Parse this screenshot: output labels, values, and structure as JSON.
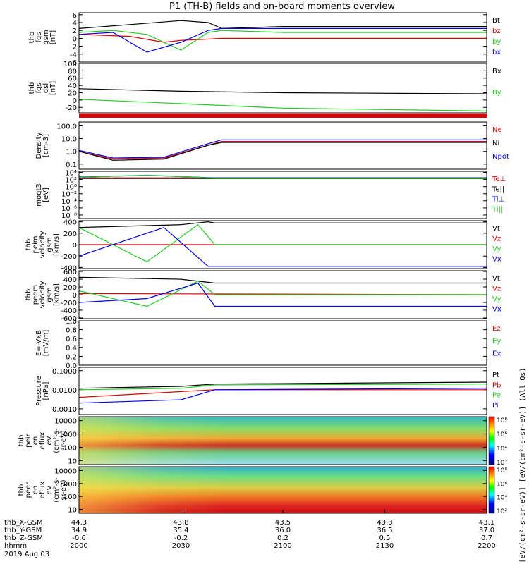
{
  "title": "P1 (TH-B) fields and on-board moments overview",
  "colors": {
    "black": "#000000",
    "red": "#dd0000",
    "green": "#22cc22",
    "blue": "#0000ee"
  },
  "chart_data": [
    {
      "type": "line",
      "ylabel": [
        "thb",
        "fgs",
        "gsm",
        "[nT]"
      ],
      "ylim": [
        -6,
        6.5
      ],
      "ticks": [
        "6",
        "4",
        "2",
        "0",
        "-2",
        "-4",
        "-6"
      ],
      "tick_values": [
        6,
        4,
        2,
        0,
        -2,
        -4,
        -6
      ],
      "series": [
        {
          "name": "Bt",
          "color": "#000000",
          "x": [
            2000,
            2015,
            2030,
            2038,
            2042,
            2100,
            2130,
            2200
          ],
          "y": [
            2.5,
            3.5,
            4.5,
            4.0,
            2.5,
            3.0,
            3.0,
            3.0
          ]
        },
        {
          "name": "bz",
          "color": "#dd0000",
          "x": [
            2000,
            2015,
            2025,
            2030,
            2038,
            2042,
            2100,
            2200
          ],
          "y": [
            1.0,
            0.5,
            -1.0,
            -0.5,
            -0.2,
            0.0,
            0.0,
            0.0
          ]
        },
        {
          "name": "by",
          "color": "#22cc22",
          "x": [
            2000,
            2010,
            2020,
            2030,
            2038,
            2042,
            2100,
            2200
          ],
          "y": [
            1.5,
            2.0,
            1.0,
            -3.0,
            1.5,
            2.0,
            1.5,
            1.5
          ]
        },
        {
          "name": "bx",
          "color": "#0000ee",
          "x": [
            2000,
            2010,
            2020,
            2030,
            2038,
            2042,
            2100,
            2200
          ],
          "y": [
            1.0,
            1.5,
            -3.5,
            -1.0,
            2.0,
            2.5,
            2.5,
            2.5
          ]
        }
      ]
    },
    {
      "type": "line",
      "ylabel": [
        "thb",
        "fgs",
        "dsl",
        "[nT]"
      ],
      "ylim": [
        -35,
        100
      ],
      "ticks": [
        "100",
        "80",
        "60",
        "40",
        "20",
        "0",
        "-20"
      ],
      "tick_values": [
        100,
        80,
        60,
        40,
        20,
        0,
        -20
      ],
      "series": [
        {
          "name": "Bx",
          "color": "#000000",
          "x": [
            2000,
            2030,
            2100,
            2200
          ],
          "y": [
            31,
            24,
            20,
            17
          ]
        },
        {
          "name": "By",
          "color": "#22cc22",
          "x": [
            2000,
            2030,
            2100,
            2200
          ],
          "y": [
            2,
            -10,
            -22,
            -30
          ]
        }
      ]
    },
    {
      "type": "line",
      "ylabel": [
        "Density",
        "[cm-3]"
      ],
      "scale": "log",
      "ticks": [
        "100.0",
        "10.0",
        "1.0",
        "0.1"
      ],
      "tick_values": [
        100,
        10,
        1,
        0.1
      ],
      "ylim": [
        0.04,
        200
      ],
      "series": [
        {
          "name": "Ne",
          "color": "#dd0000",
          "x": [
            2000,
            2010,
            2025,
            2038,
            2042,
            2100,
            2200
          ],
          "y": [
            1.0,
            0.25,
            0.3,
            3,
            6,
            6,
            6
          ]
        },
        {
          "name": "Ni",
          "color": "#000000",
          "x": [
            2000,
            2010,
            2025,
            2038,
            2042,
            2100,
            2200
          ],
          "y": [
            1.0,
            0.2,
            0.25,
            3,
            5,
            5,
            5
          ]
        },
        {
          "name": "Npot",
          "color": "#0000ee",
          "x": [
            2000,
            2010,
            2025,
            2038,
            2042,
            2100,
            2200
          ],
          "y": [
            1.2,
            0.3,
            0.35,
            4,
            8,
            8,
            8
          ]
        }
      ]
    },
    {
      "type": "line",
      "ylabel": [
        "moqt3",
        "[eV]"
      ],
      "scale": "log",
      "ticks": [
        "10⁴",
        "10²",
        "10⁰",
        "10⁻²",
        "10⁻⁴",
        "10⁻⁶",
        "10⁻⁸"
      ],
      "tick_values": [
        10000,
        100,
        1,
        0.01,
        0.0001,
        1e-06,
        1e-08
      ],
      "ylim": [
        1e-09,
        20000
      ],
      "series": [
        {
          "name": "Te⊥",
          "color": "#dd0000",
          "x": [
            2000,
            2200
          ],
          "y": [
            300,
            300
          ]
        },
        {
          "name": "Te||",
          "color": "#000000",
          "x": [
            2000,
            2200
          ],
          "y": [
            200,
            200
          ]
        },
        {
          "name": "Ti⊥",
          "color": "#0000ee",
          "x": [
            2000,
            2020,
            2040,
            2200
          ],
          "y": [
            500,
            1500,
            300,
            300
          ]
        },
        {
          "name": "Ti||",
          "color": "#22cc22",
          "x": [
            2000,
            2020,
            2040,
            2200
          ],
          "y": [
            400,
            1800,
            250,
            250
          ]
        }
      ]
    },
    {
      "type": "line",
      "ylabel": [
        "thb",
        "peim",
        "velocity",
        "gsm",
        "[km/s]"
      ],
      "ylim": [
        -420,
        420
      ],
      "ticks": [
        "400",
        "200",
        "0",
        "-200",
        "-400"
      ],
      "tick_values": [
        400,
        200,
        0,
        -200,
        -400
      ],
      "series": [
        {
          "name": "Vt",
          "color": "#000000",
          "x": [
            2000,
            2030,
            2038,
            2040,
            2200
          ],
          "y": [
            300,
            350,
            400,
            380,
            380
          ]
        },
        {
          "name": "Vz",
          "color": "#dd0000",
          "x": [
            2000,
            2200
          ],
          "y": [
            0,
            0
          ]
        },
        {
          "name": "Vy",
          "color": "#22cc22",
          "x": [
            2000,
            2020,
            2035,
            2040,
            2200
          ],
          "y": [
            300,
            -300,
            350,
            0,
            0
          ]
        },
        {
          "name": "Vx",
          "color": "#0000ee",
          "x": [
            2000,
            2025,
            2038,
            2040,
            2200
          ],
          "y": [
            -200,
            300,
            -380,
            -380,
            -380
          ]
        }
      ]
    },
    {
      "type": "line",
      "ylabel": [
        "thb",
        "peem",
        "velocity",
        "gsm",
        "[km/s]"
      ],
      "ylim": [
        -620,
        620
      ],
      "ticks": [
        "600",
        "400",
        "200",
        "0",
        "-200",
        "-400",
        "-600"
      ],
      "tick_values": [
        600,
        400,
        200,
        0,
        -200,
        -400,
        -600
      ],
      "series": [
        {
          "name": "Vt",
          "color": "#000000",
          "x": [
            2000,
            2030,
            2040,
            2200
          ],
          "y": [
            450,
            400,
            300,
            300
          ]
        },
        {
          "name": "Vz",
          "color": "#dd0000",
          "x": [
            2000,
            2200
          ],
          "y": [
            30,
            0
          ]
        },
        {
          "name": "Vy",
          "color": "#22cc22",
          "x": [
            2000,
            2020,
            2035,
            2040,
            2200
          ],
          "y": [
            100,
            -300,
            350,
            0,
            0
          ]
        },
        {
          "name": "Vx",
          "color": "#0000ee",
          "x": [
            2000,
            2020,
            2035,
            2040,
            2200
          ],
          "y": [
            -200,
            -100,
            300,
            -300,
            -300
          ]
        }
      ]
    },
    {
      "type": "line",
      "ylabel": [
        "E=-VxB",
        "[mV/m]"
      ],
      "ylim": [
        0,
        1.0
      ],
      "ticks": [
        "1.0",
        "0.8",
        "0.6",
        "0.4",
        "0.2",
        "0.0"
      ],
      "tick_values": [
        1.0,
        0.8,
        0.6,
        0.4,
        0.2,
        0.0
      ],
      "series": [
        {
          "name": "Ez",
          "color": "#dd0000",
          "x": [],
          "y": []
        },
        {
          "name": "Ey",
          "color": "#22cc22",
          "x": [],
          "y": []
        },
        {
          "name": "Ex",
          "color": "#0000ee",
          "x": [],
          "y": []
        }
      ]
    },
    {
      "type": "line",
      "ylabel": [
        "Pressure",
        "[nPa]"
      ],
      "scale": "log",
      "ticks": [
        "0.1000",
        "0.0100",
        "0.0010"
      ],
      "tick_values": [
        0.1,
        0.01,
        0.001
      ],
      "ylim": [
        0.0005,
        0.15
      ],
      "series": [
        {
          "name": "Pt",
          "color": "#000000",
          "x": [
            2000,
            2030,
            2040,
            2200
          ],
          "y": [
            0.012,
            0.015,
            0.02,
            0.025
          ]
        },
        {
          "name": "Pb",
          "color": "#dd0000",
          "x": [
            2000,
            2030,
            2040,
            2200
          ],
          "y": [
            0.004,
            0.008,
            0.01,
            0.01
          ]
        },
        {
          "name": "Pe",
          "color": "#22cc22",
          "x": [
            2000,
            2030,
            2040,
            2200
          ],
          "y": [
            0.01,
            0.012,
            0.018,
            0.02
          ]
        },
        {
          "name": "Pi",
          "color": "#0000ee",
          "x": [
            2000,
            2030,
            2040,
            2200
          ],
          "y": [
            0.002,
            0.003,
            0.01,
            0.012
          ]
        }
      ]
    },
    {
      "type": "heatmap",
      "ylabel": [
        "thb",
        "peir",
        "en",
        "eflux",
        "eV",
        "(cm²-s-",
        "sr-eV)"
      ],
      "scale": "log",
      "ticks": [
        "10000",
        "1000",
        "100",
        "10"
      ],
      "tick_values": [
        10000,
        1000,
        100,
        10
      ]
    },
    {
      "type": "heatmap",
      "ylabel": [
        "thb",
        "peer",
        "en",
        "eflux",
        "eV",
        "(cm²-s-",
        "sr-eV)"
      ],
      "scale": "log",
      "ticks": [
        "10000",
        "1000",
        "100",
        "10"
      ],
      "tick_values": [
        10000,
        1000,
        100,
        10
      ]
    }
  ],
  "colorbars": [
    {
      "ticks": [
        "10⁸",
        "10⁶",
        "10⁴",
        "10²"
      ]
    },
    {
      "ticks": [
        "10⁸",
        "10⁶",
        "10⁴",
        "10²"
      ]
    }
  ],
  "colorbar_label": "[eV/(cm²-s-sr-eV)]  [eV/(cm²-s-sr-eV)]  (All Qs)",
  "xaxis": {
    "rows": [
      {
        "label": "thb_X-GSM",
        "values": [
          "44.3",
          "43.8",
          "43.5",
          "43.3",
          "43.1"
        ]
      },
      {
        "label": "thb_Y-GSM",
        "values": [
          "34.9",
          "35.4",
          "36.0",
          "36.5",
          "37.0"
        ]
      },
      {
        "label": "thb_Z-GSM",
        "values": [
          "-0.6",
          "-0.2",
          "0.2",
          "0.5",
          "0.7"
        ]
      },
      {
        "label": "hhmm",
        "values": [
          "2000",
          "2030",
          "2100",
          "2130",
          "2200"
        ]
      }
    ],
    "date": "2019 Aug 03",
    "range": [
      2000,
      2200
    ]
  }
}
